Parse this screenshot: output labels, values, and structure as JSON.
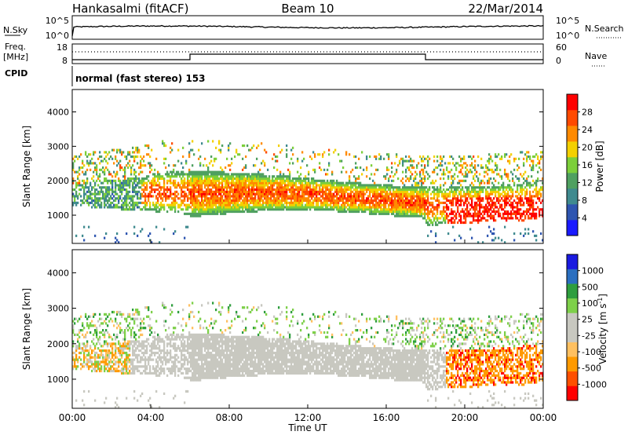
{
  "header": {
    "station": "Hankasalmi (fitACF)",
    "beam": "Beam 10",
    "date": "22/Mar/2014"
  },
  "top_panels": {
    "nsky_label": "N.Sky",
    "nsearch_label": "N.Search",
    "nsky_ticks": [
      "10^5",
      "10^0"
    ],
    "nsearch_ticks": [
      "10^5",
      "10^0"
    ],
    "freq_label_1": "Freq.",
    "freq_label_2": "[MHz]",
    "freq_ticks": [
      "18",
      "8"
    ],
    "nave_label": "Nave",
    "nave_ticks": [
      "60",
      "0"
    ],
    "cpid_label": "CPID",
    "cpid_text": "normal (fast stereo) 153"
  },
  "colors": {
    "power_scale": [
      "#1a1aff",
      "#2e55b0",
      "#3f8a8f",
      "#4fa060",
      "#7ccf3a",
      "#f3d000",
      "#ff8a00",
      "#ff4a00",
      "#ff0000"
    ],
    "velocity_scale": [
      "#ff0000",
      "#ff5000",
      "#ff9a00",
      "#ffc060",
      "#c8c8c0",
      "#c8c8c0",
      "#7ed04a",
      "#2e9e3e",
      "#2a6fc0",
      "#1a1ae0"
    ]
  },
  "chart_data": [
    {
      "type": "heatmap",
      "title": "Power",
      "xlabel": "Time UT",
      "ylabel": "Slant Range [km]",
      "x_ticks": [
        "00:00",
        "04:00",
        "08:00",
        "12:00",
        "16:00",
        "20:00",
        "00:00"
      ],
      "y_ticks": [
        4000,
        3000,
        2000,
        1000
      ],
      "ylim": [
        180,
        4650
      ],
      "colorbar_label": "Power [dB]",
      "colorbar_ticks": [
        28,
        24,
        20,
        16,
        12,
        8,
        4
      ],
      "colorbar_range": [
        0,
        30
      ]
    },
    {
      "type": "heatmap",
      "title": "Velocity",
      "xlabel": "Time UT",
      "ylabel": "Slant Range [km]",
      "x_ticks": [
        "00:00",
        "04:00",
        "08:00",
        "12:00",
        "16:00",
        "20:00",
        "00:00"
      ],
      "y_ticks": [
        4000,
        3000,
        2000,
        1000
      ],
      "ylim": [
        180,
        4650
      ],
      "colorbar_label": "Velocity [m s^-1]",
      "colorbar_ticks": [
        1000,
        500,
        100,
        25,
        -25,
        -100,
        -500,
        -1000
      ]
    }
  ]
}
